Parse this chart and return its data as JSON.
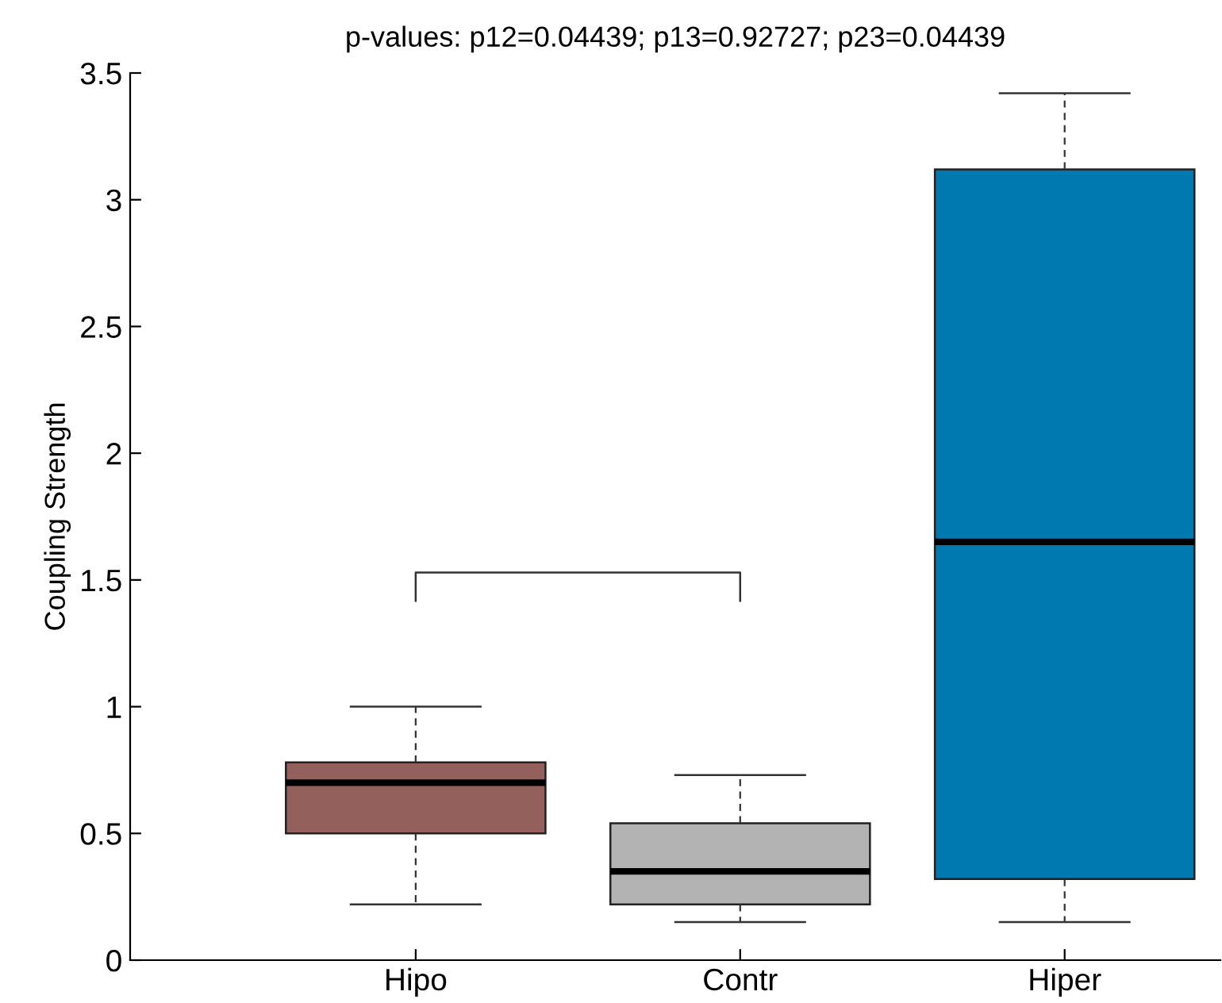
{
  "chart_data": {
    "type": "box",
    "title": "p-values: p12=0.04439; p13=0.92727; p23=0.04439",
    "ylabel": "Coupling Strength",
    "categories": [
      "Hipo",
      "Contr",
      "Hiper"
    ],
    "colors": [
      "#93605c",
      "#b3b3b3",
      "#0079b0"
    ],
    "boxes": [
      {
        "low": 0.22,
        "q1": 0.5,
        "median": 0.7,
        "q3": 0.78,
        "high": 1.0
      },
      {
        "low": 0.15,
        "q1": 0.22,
        "median": 0.35,
        "q3": 0.54,
        "high": 0.73
      },
      {
        "low": 0.15,
        "q1": 0.32,
        "median": 1.65,
        "q3": 3.12,
        "high": 3.42
      }
    ],
    "ylim": [
      0,
      3.5
    ],
    "yticks": [
      0,
      0.5,
      1,
      1.5,
      2,
      2.5,
      3,
      3.5
    ],
    "grid": false
  }
}
